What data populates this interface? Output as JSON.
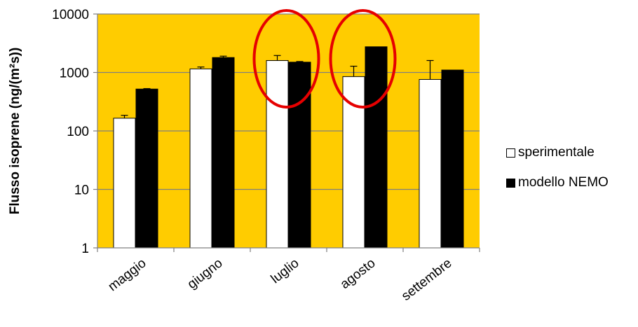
{
  "chart_data": {
    "type": "bar",
    "categories": [
      "maggio",
      "giugno",
      "luglio",
      "agosto",
      "settembre"
    ],
    "series": [
      {
        "name": "sperimentale",
        "values": [
          165,
          1150,
          1600,
          850,
          760
        ],
        "error_upper": [
          185,
          1240,
          1950,
          1280,
          1600
        ],
        "color": "#ffffff"
      },
      {
        "name": "modello NEMO",
        "values": [
          520,
          1800,
          1500,
          2750,
          1100
        ],
        "error_upper": [
          530,
          1900,
          1540,
          2750,
          1100
        ],
        "color": "#000000"
      }
    ],
    "title": "",
    "xlabel": "",
    "ylabel": "Flusso isoprene (ng/(m²s))",
    "yscale": "log",
    "ylim": [
      1,
      10000
    ],
    "yticks": [
      "1",
      "10",
      "100",
      "1000",
      "10000"
    ],
    "grid": "horizontal",
    "legend_position": "right",
    "plot_background": "#ffcc00",
    "highlight_circle_color": "#e60000",
    "highlighted_categories": [
      "luglio",
      "agosto"
    ]
  }
}
